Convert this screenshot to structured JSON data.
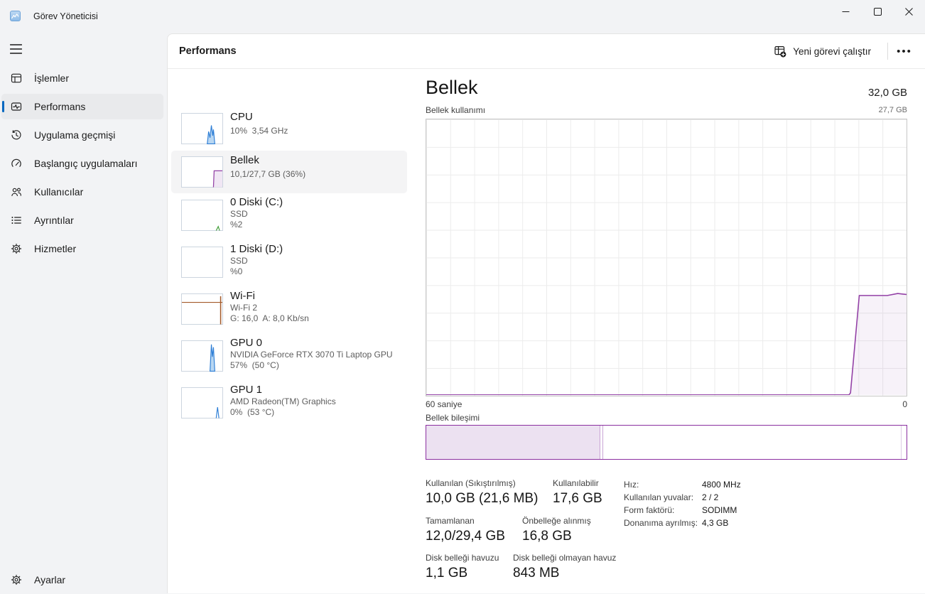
{
  "window": {
    "title": "Görev Yöneticisi"
  },
  "sidebar": {
    "items": [
      {
        "label": "İşlemler"
      },
      {
        "label": "Performans"
      },
      {
        "label": "Uygulama geçmişi"
      },
      {
        "label": "Başlangıç uygulamaları"
      },
      {
        "label": "Kullanıcılar"
      },
      {
        "label": "Ayrıntılar"
      },
      {
        "label": "Hizmetler"
      }
    ],
    "selected": "Performans",
    "settings_label": "Ayarlar"
  },
  "header": {
    "title": "Performans",
    "run_new_task": "Yeni görevi çalıştır",
    "more": "•••"
  },
  "perf": {
    "items": [
      {
        "name": "CPU",
        "line1": "10%  3,54 GHz"
      },
      {
        "name": "Bellek",
        "line1": "10,1/27,7 GB (36%)"
      },
      {
        "name": "0 Diski (C:)",
        "line1": "SSD",
        "line2": "%2"
      },
      {
        "name": "1 Diski (D:)",
        "line1": "SSD",
        "line2": "%0"
      },
      {
        "name": "Wi-Fi",
        "line1": "Wi-Fi 2",
        "line2": "G: 16,0  A: 8,0 Kb/sn"
      },
      {
        "name": "GPU 0",
        "line1": "NVIDIA GeForce RTX 3070 Ti Laptop GPU",
        "line2": "57%  (50 °C)"
      },
      {
        "name": "GPU 1",
        "line1": "AMD Radeon(TM) Graphics",
        "line2": "0%  (53 °C)"
      }
    ]
  },
  "detail": {
    "title": "Bellek",
    "total": "32,0 GB",
    "usage_label": "Bellek kullanımı",
    "scale_max": "27,7 GB",
    "time_span": "60 saniye",
    "time_end": "0",
    "composition_label": "Bellek bileşimi",
    "stats": [
      {
        "label": "Kullanılan (Sıkıştırılmış)",
        "value": "10,0 GB (21,6 MB)"
      },
      {
        "label": "Kullanılabilir",
        "value": "17,6 GB"
      },
      {
        "label": "Tamamlanan",
        "value": "12,0/29,4 GB"
      },
      {
        "label": "Önbelleğe alınmış",
        "value": "16,8 GB"
      },
      {
        "label": "Disk belleği havuzu",
        "value": "1,1 GB"
      },
      {
        "label": "Disk belleği olmayan havuz",
        "value": "843 MB"
      }
    ],
    "info": [
      {
        "label": "Hız:",
        "value": "4800 MHz"
      },
      {
        "label": "Kullanılan yuvalar:",
        "value": "2 / 2"
      },
      {
        "label": "Form faktörü:",
        "value": "SODIMM"
      },
      {
        "label": "Donanıma ayrılmış:",
        "value": "4,3 GB"
      }
    ]
  },
  "colors": {
    "accent": "#0067c0",
    "memory_purple": "#9341a6",
    "memory_fill": "rgba(147,65,166,0.07)",
    "composition_border": "#8b2fa0",
    "in_use_fill": "#ece1f1",
    "grid": "#ececec"
  },
  "chart_data": {
    "type": "area",
    "title": "Bellek kullanımı",
    "xlabel": "60 saniye → 0",
    "ylabel": "GB",
    "ylim": [
      0,
      27.7
    ],
    "xlim_seconds": [
      60,
      0
    ],
    "grid": {
      "columns": 20,
      "rows": 10
    },
    "series": [
      {
        "name": "Bellek kullanımı (GB)",
        "points_t_gb": [
          [
            0,
            0
          ],
          [
            52.8,
            0
          ],
          [
            53.0,
            0.2
          ],
          [
            54.1,
            10.0
          ],
          [
            57.6,
            10.0
          ],
          [
            58.9,
            10.2
          ],
          [
            60,
            10.1
          ]
        ]
      }
    ],
    "composition": {
      "segments": [
        {
          "name": "in-use",
          "fraction": 0.363
        },
        {
          "name": "modified",
          "fraction": 0.006
        },
        {
          "name": "standby",
          "fraction": 0.621
        },
        {
          "name": "free",
          "fraction": 0.01
        }
      ]
    }
  }
}
